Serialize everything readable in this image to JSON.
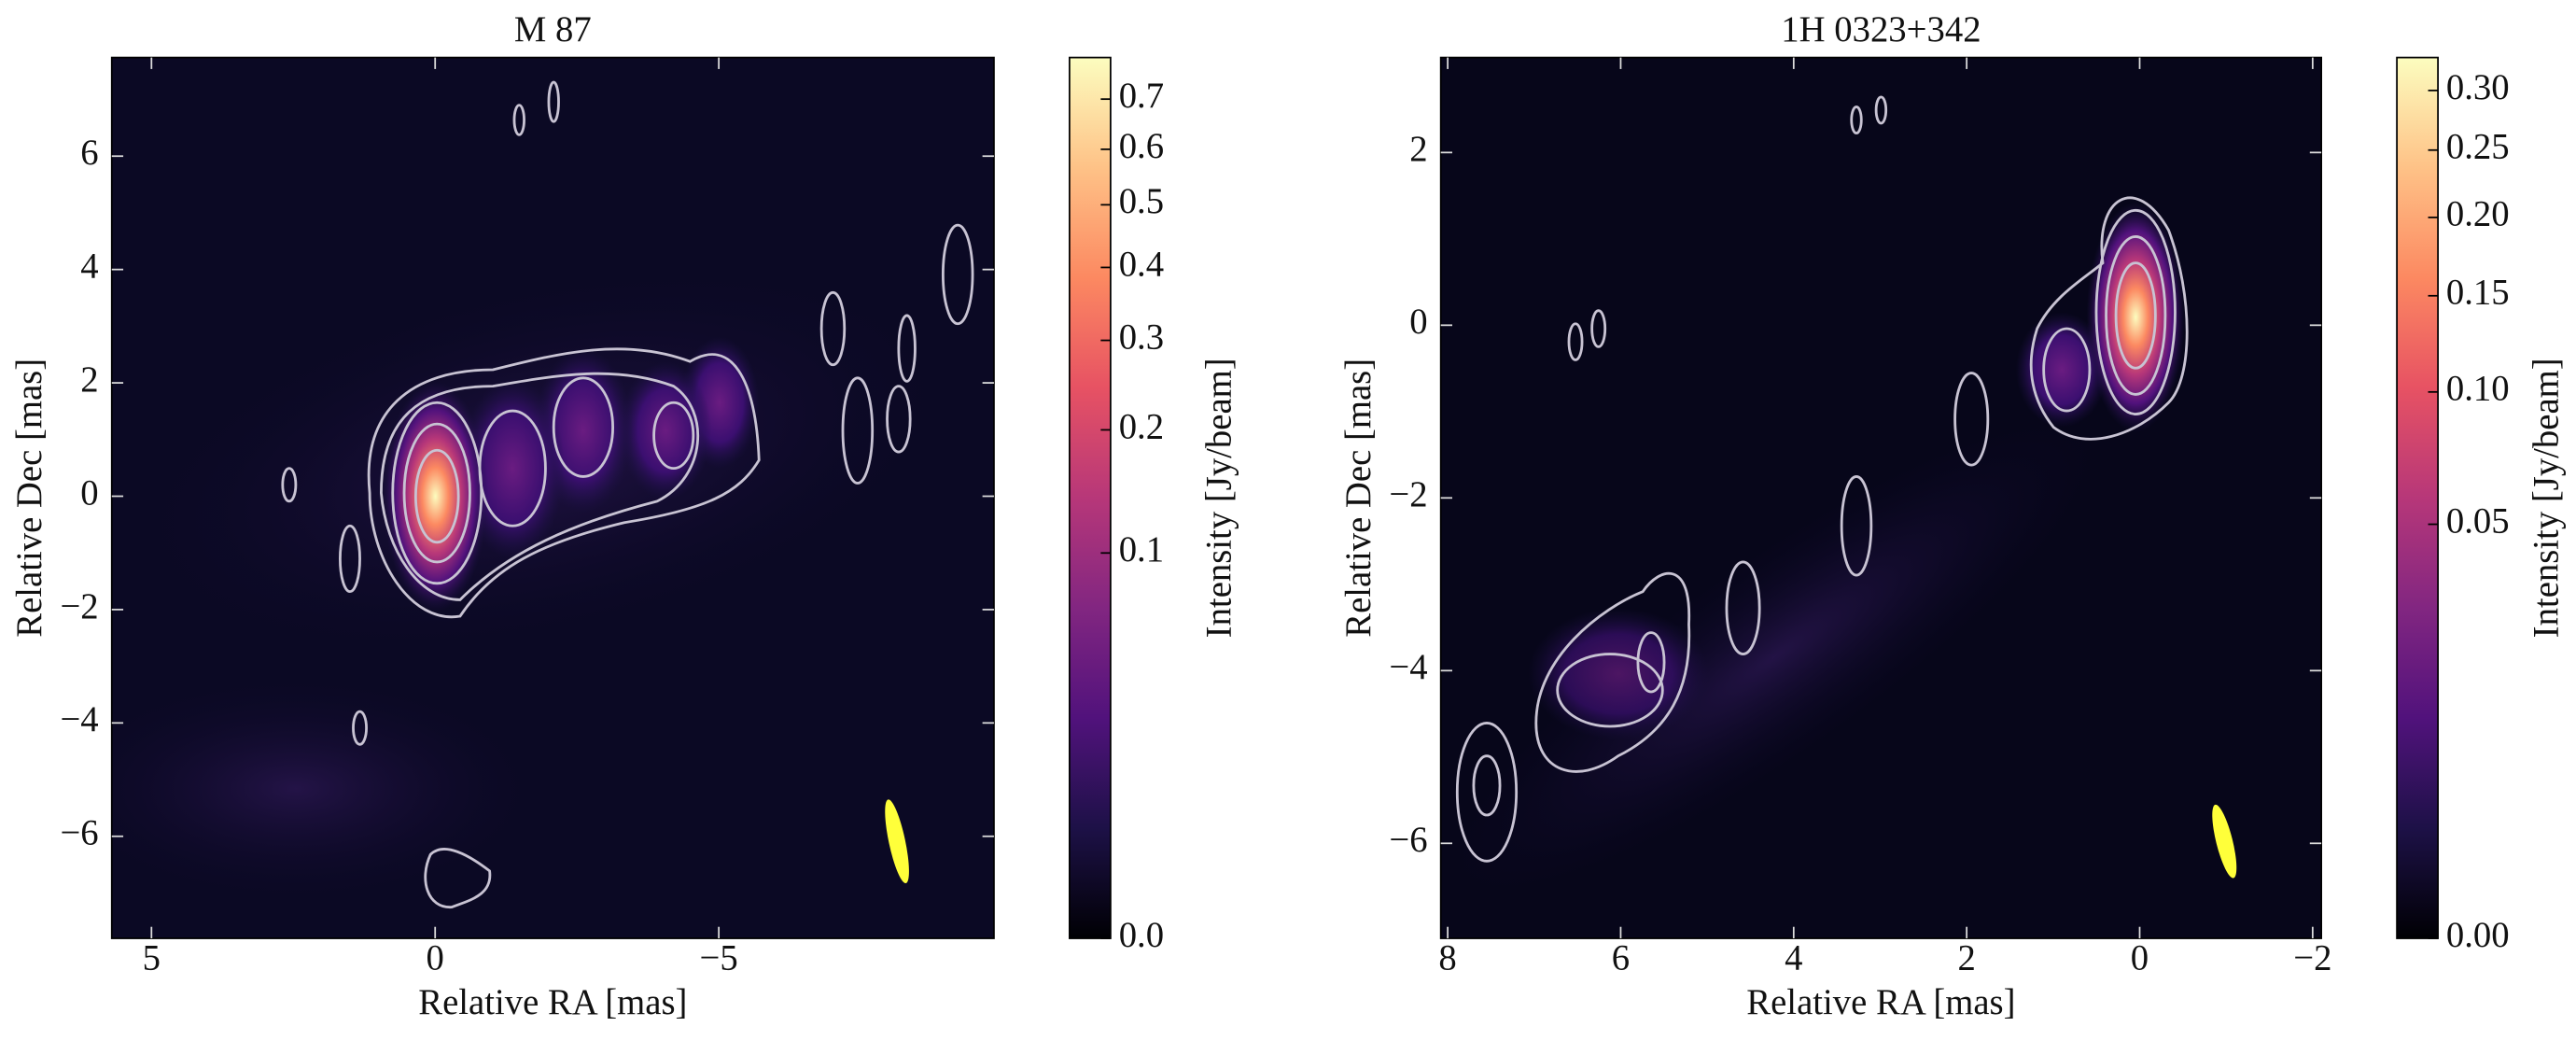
{
  "chart_data": [
    {
      "type": "image",
      "title": "M 87",
      "x_label": "Relative RA [mas]",
      "y_label": "Relative Dec [mas]",
      "xlim": [
        5.7,
        -9.85
      ],
      "ylim": [
        -7.8,
        7.74
      ],
      "xticks": [
        5,
        0,
        {
          "value": -5,
          "label": "−5"
        }
      ],
      "yticks": [
        {
          "value": -6,
          "label": "−6"
        },
        {
          "value": -4,
          "label": "−4"
        },
        {
          "value": -2,
          "label": "−2"
        },
        0,
        2,
        4,
        6
      ],
      "colorbar": {
        "label": "Intensity [Jy/beam]",
        "colormap": "magma",
        "gamma": 0.4,
        "clim": [
          0,
          0.79
        ],
        "ticks": [
          {
            "value": 0,
            "label": "0.0"
          },
          0.1,
          0.2,
          0.3,
          0.4,
          0.5,
          0.6,
          0.7
        ]
      }
    },
    {
      "type": "image",
      "title": "1H 0323+342",
      "x_label": "Relative RA [mas]",
      "y_label": "Relative Dec [mas]",
      "xlim": [
        8.08,
        -2.1
      ],
      "ylim": [
        -7.1,
        3.1
      ],
      "xticks": [
        8,
        6,
        4,
        2,
        0,
        {
          "value": -2,
          "label": "−2"
        }
      ],
      "yticks": [
        {
          "value": -6,
          "label": "−6"
        },
        {
          "value": -4,
          "label": "−4"
        },
        {
          "value": -2,
          "label": "−2"
        },
        0,
        2
      ],
      "colorbar": {
        "label": "Intensity [Jy/beam]",
        "colormap": "magma",
        "gamma": 0.4,
        "clim": [
          0,
          0.33
        ],
        "ticks": [
          {
            "value": 0,
            "label": "0.00"
          },
          0.05,
          {
            "value": 0.1,
            "label": "0.10"
          },
          0.15,
          {
            "value": 0.2,
            "label": "0.20"
          },
          0.25,
          {
            "value": 0.3,
            "label": "0.30"
          }
        ]
      }
    }
  ]
}
